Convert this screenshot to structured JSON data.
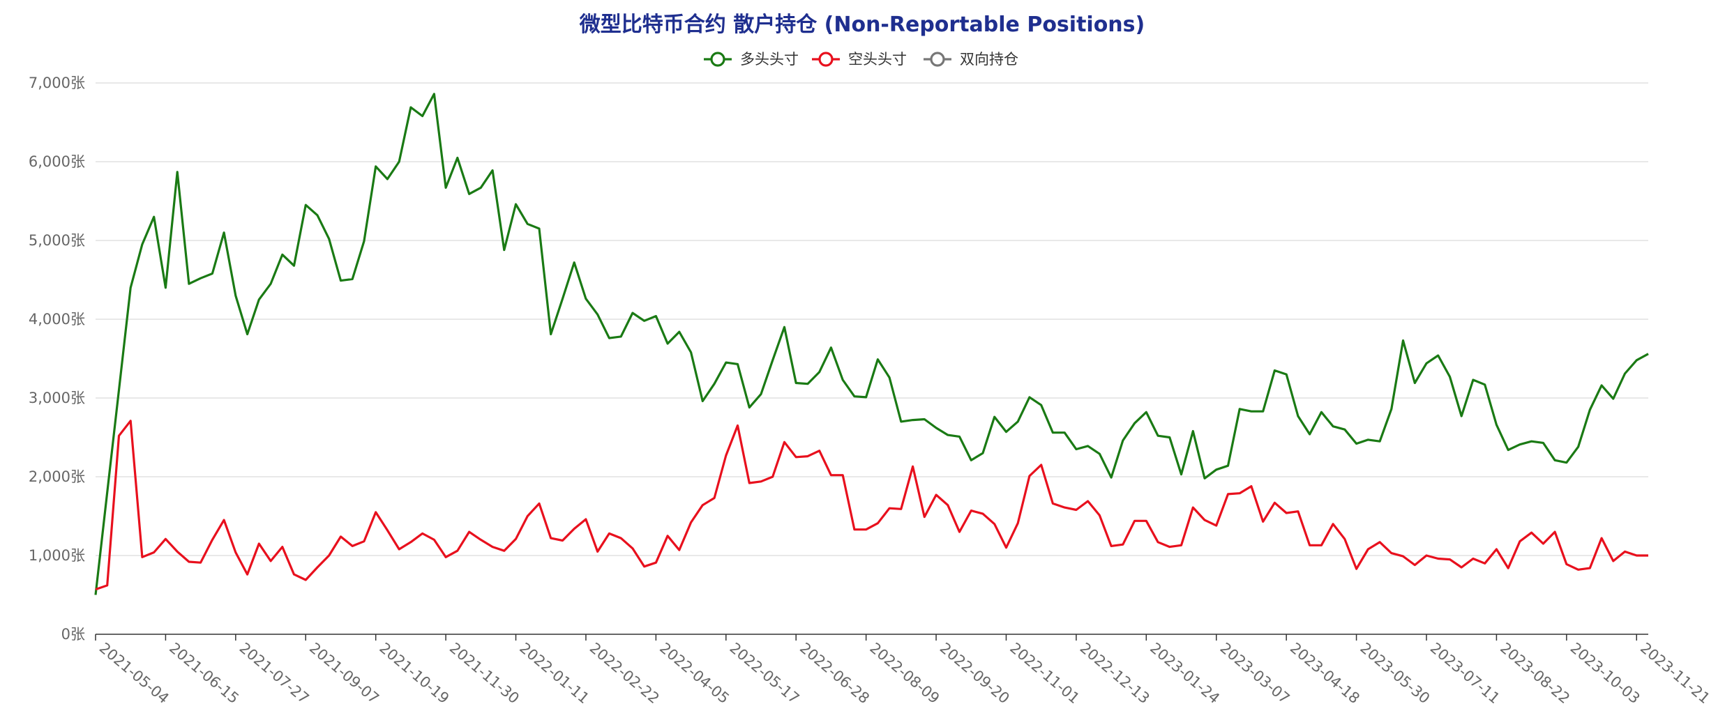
{
  "colors": {
    "title": "#1f2f8f",
    "grid": "#e0e0e0",
    "axis": "#333333",
    "tick_text": "#666666"
  },
  "chart_data": {
    "type": "line",
    "title": "微型比特币合约 散户持仓 (Non-Reportable Positions)",
    "legend_position": "top-center",
    "grid": true,
    "ylim": [
      0,
      7000
    ],
    "y_ticks": [
      0,
      1000,
      2000,
      3000,
      4000,
      5000,
      6000,
      7000
    ],
    "y_tick_labels": [
      "0张",
      "1,000张",
      "2,000张",
      "3,000张",
      "4,000张",
      "5,000张",
      "6,000张",
      "7,000张"
    ],
    "x_tick_labels": [
      "2021-05-04",
      "2021-06-15",
      "2021-07-27",
      "2021-09-07",
      "2021-10-19",
      "2021-11-30",
      "2022-01-11",
      "2022-02-22",
      "2022-04-05",
      "2022-05-17",
      "2022-06-28",
      "2022-08-09",
      "2022-09-20",
      "2022-11-01",
      "2022-12-13",
      "2023-01-24",
      "2023-03-07",
      "2023-04-18",
      "2023-05-30",
      "2023-07-11",
      "2023-08-22",
      "2023-10-03",
      "2023-11-21"
    ],
    "x_label_every": 6,
    "series": [
      {
        "name": "多头头寸",
        "color": "#1a7a14",
        "values": [
          500,
          1800,
          3100,
          4400,
          4950,
          5300,
          4400,
          5870,
          4450,
          4520,
          4580,
          5100,
          4300,
          3810,
          4250,
          4450,
          4820,
          4680,
          5450,
          5320,
          5020,
          4490,
          4510,
          4990,
          5940,
          5780,
          6000,
          6690,
          6580,
          6860,
          5670,
          6050,
          5590,
          5670,
          5890,
          4880,
          5460,
          5210,
          5150,
          3810,
          4260,
          4720,
          4260,
          4060,
          3760,
          3780,
          4080,
          3980,
          4040,
          3690,
          3840,
          3580,
          2960,
          3180,
          3450,
          3430,
          2880,
          3050,
          3480,
          3900,
          3190,
          3180,
          3330,
          3640,
          3230,
          3020,
          3010,
          3490,
          3260,
          2700,
          2720,
          2730,
          2620,
          2530,
          2510,
          2210,
          2300,
          2760,
          2570,
          2700,
          3010,
          2910,
          2560,
          2560,
          2350,
          2390,
          2290,
          1990,
          2460,
          2680,
          2820,
          2520,
          2500,
          2030,
          2580,
          1980,
          2090,
          2140,
          2860,
          2830,
          2830,
          3350,
          3300,
          2770,
          2540,
          2820,
          2640,
          2600,
          2420,
          2470,
          2450,
          2860,
          3730,
          3190,
          3440,
          3540,
          3270,
          2770,
          3230,
          3170,
          2660,
          2340,
          2410,
          2450,
          2430,
          2210,
          2180,
          2380,
          2850,
          3160,
          2990,
          3310,
          3480,
          3560
        ]
      },
      {
        "name": "空头头寸",
        "color": "#e8101d",
        "values": [
          570,
          620,
          2520,
          2710,
          980,
          1040,
          1210,
          1050,
          920,
          910,
          1200,
          1450,
          1040,
          760,
          1150,
          930,
          1110,
          760,
          690,
          850,
          1000,
          1240,
          1120,
          1180,
          1550,
          1320,
          1080,
          1170,
          1280,
          1200,
          980,
          1060,
          1300,
          1200,
          1110,
          1060,
          1210,
          1500,
          1660,
          1220,
          1190,
          1340,
          1460,
          1050,
          1280,
          1220,
          1090,
          860,
          910,
          1250,
          1070,
          1420,
          1640,
          1730,
          2270,
          2650,
          1920,
          1940,
          2000,
          2440,
          2250,
          2260,
          2330,
          2020,
          2020,
          1330,
          1330,
          1410,
          1600,
          1590,
          2130,
          1490,
          1770,
          1640,
          1300,
          1570,
          1530,
          1400,
          1100,
          1410,
          2010,
          2150,
          1660,
          1610,
          1580,
          1690,
          1510,
          1120,
          1140,
          1440,
          1440,
          1170,
          1110,
          1130,
          1610,
          1450,
          1380,
          1780,
          1790,
          1880,
          1430,
          1670,
          1540,
          1560,
          1130,
          1130,
          1400,
          1210,
          830,
          1080,
          1170,
          1030,
          990,
          880,
          1000,
          960,
          950,
          850,
          960,
          900,
          1080,
          840,
          1180,
          1290,
          1150,
          1300,
          890,
          820,
          840,
          1220,
          930,
          1050,
          1000,
          1000
        ]
      },
      {
        "name": "双向持仓",
        "color": "#777777",
        "values": []
      }
    ]
  }
}
